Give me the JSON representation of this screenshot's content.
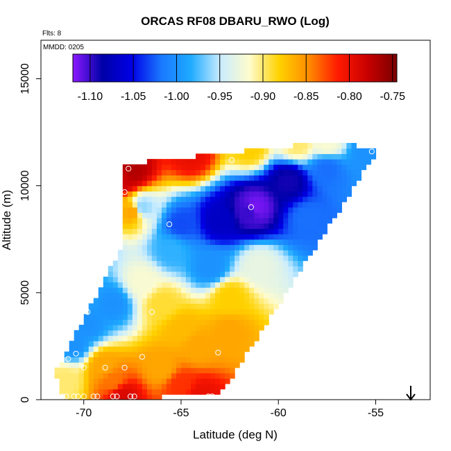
{
  "chart_data": {
    "type": "heatmap",
    "title": "ORCAS RF08 DBARU_RWO (Log)",
    "flights_label": "Flts: 8",
    "date_label": "MMDD: 0205",
    "xlabel": "Latitude (deg N)",
    "ylabel": "Altitude (m)",
    "xlim": [
      -72.2,
      -52.2
    ],
    "ylim": [
      0,
      16800
    ],
    "xticks": [
      -70,
      -65,
      -60,
      -55
    ],
    "yticks": [
      0,
      5000,
      10000,
      15000
    ],
    "xtick_labels": [
      "-70",
      "-65",
      "-60",
      "-55"
    ],
    "ytick_labels": [
      "0",
      "5000",
      "10000",
      "15000"
    ],
    "colorbar": {
      "min": -1.12,
      "max": -0.745,
      "ticks": [
        -1.1,
        -1.05,
        -1.0,
        -0.95,
        -0.9,
        -0.85,
        -0.8,
        -0.75
      ],
      "tick_labels": [
        "-1.10",
        "-1.05",
        "-1.00",
        "-0.95",
        "-0.90",
        "-0.85",
        "-0.80",
        "-0.75"
      ],
      "colors": [
        "#8b1aff",
        "#0000a8",
        "#0000e6",
        "#1a78ff",
        "#1eaaff",
        "#c8ecff",
        "#fffccc",
        "#ffd200",
        "#ff8c00",
        "#ff1a00",
        "#c80000",
        "#7a0000"
      ]
    },
    "grid_cell": {
      "dx_deg": 0.25,
      "dz_m": 250
    },
    "domain_polygon": [
      [
        -71.5,
        1200
      ],
      [
        -68.0,
        7200
      ],
      [
        -68.0,
        11000
      ],
      [
        -58.0,
        12000
      ],
      [
        -54.8,
        11800
      ],
      [
        -63.0,
        200
      ],
      [
        -71.0,
        0
      ]
    ],
    "field_anchors": [
      {
        "lat": -61.2,
        "alt": 9000,
        "value": -1.115
      },
      {
        "lat": -61.5,
        "alt": 8800,
        "value": -1.1
      },
      {
        "lat": -59.5,
        "alt": 10200,
        "value": -1.09
      },
      {
        "lat": -63.0,
        "alt": 8400,
        "value": -1.07
      },
      {
        "lat": -65.0,
        "alt": 8200,
        "value": -1.03
      },
      {
        "lat": -57.5,
        "alt": 10800,
        "value": -1.02
      },
      {
        "lat": -58.5,
        "alt": 8500,
        "value": -1.02
      },
      {
        "lat": -67.0,
        "alt": 9000,
        "value": -0.96
      },
      {
        "lat": -67.5,
        "alt": 10700,
        "value": -0.77
      },
      {
        "lat": -68.0,
        "alt": 10300,
        "value": -0.78
      },
      {
        "lat": -67.5,
        "alt": 8800,
        "value": -0.86
      },
      {
        "lat": -69.5,
        "alt": 7200,
        "value": -0.97
      },
      {
        "lat": -70.0,
        "alt": 5000,
        "value": -0.99
      },
      {
        "lat": -69.8,
        "alt": 3500,
        "value": -1.0
      },
      {
        "lat": -70.5,
        "alt": 2600,
        "value": -1.0
      },
      {
        "lat": -68.5,
        "alt": 4500,
        "value": -1.0
      },
      {
        "lat": -67.0,
        "alt": 5500,
        "value": -0.92
      },
      {
        "lat": -66.0,
        "alt": 4500,
        "value": -0.89
      },
      {
        "lat": -65.0,
        "alt": 3300,
        "value": -0.87
      },
      {
        "lat": -64.2,
        "alt": 2500,
        "value": -0.86
      },
      {
        "lat": -62.5,
        "alt": 4800,
        "value": -0.88
      },
      {
        "lat": -61.0,
        "alt": 6300,
        "value": -0.93
      },
      {
        "lat": -63.5,
        "alt": 6200,
        "value": -1.0
      },
      {
        "lat": -62.5,
        "alt": 3200,
        "value": -0.86
      },
      {
        "lat": -65.5,
        "alt": 7000,
        "value": -0.98
      },
      {
        "lat": -61.5,
        "alt": 11800,
        "value": -0.88
      },
      {
        "lat": -59.0,
        "alt": 12000,
        "value": -0.9
      },
      {
        "lat": -57.5,
        "alt": 12000,
        "value": -0.92
      },
      {
        "lat": -64.5,
        "alt": 11500,
        "value": -0.8
      },
      {
        "lat": -55.5,
        "alt": 11500,
        "value": -1.0
      },
      {
        "lat": -69.0,
        "alt": 1600,
        "value": -0.86
      },
      {
        "lat": -66.0,
        "alt": 1500,
        "value": -0.86
      },
      {
        "lat": -68.5,
        "alt": 900,
        "value": -0.84
      },
      {
        "lat": -65.0,
        "alt": 700,
        "value": -0.82
      },
      {
        "lat": -68.0,
        "alt": 200,
        "value": -0.79
      },
      {
        "lat": -64.0,
        "alt": 200,
        "value": -0.8
      },
      {
        "lat": -71.0,
        "alt": 900,
        "value": -0.9
      }
    ],
    "observations": [
      {
        "lat": -71.1,
        "alt": 150
      },
      {
        "lat": -70.9,
        "alt": 150
      },
      {
        "lat": -70.5,
        "alt": 150
      },
      {
        "lat": -70.3,
        "alt": 150
      },
      {
        "lat": -70.0,
        "alt": 150
      },
      {
        "lat": -69.5,
        "alt": 150
      },
      {
        "lat": -69.3,
        "alt": 150
      },
      {
        "lat": -68.5,
        "alt": 150
      },
      {
        "lat": -68.3,
        "alt": 150
      },
      {
        "lat": -67.6,
        "alt": 150
      },
      {
        "lat": -67.4,
        "alt": 150
      },
      {
        "lat": -63.6,
        "alt": 150
      },
      {
        "lat": -63.4,
        "alt": 150
      },
      {
        "lat": -70.0,
        "alt": 1500
      },
      {
        "lat": -68.9,
        "alt": 1500
      },
      {
        "lat": -67.9,
        "alt": 1500
      },
      {
        "lat": -70.8,
        "alt": 1900
      },
      {
        "lat": -70.4,
        "alt": 2150
      },
      {
        "lat": -67.0,
        "alt": 2000
      },
      {
        "lat": -63.1,
        "alt": 2200
      },
      {
        "lat": -70.3,
        "alt": 4100
      },
      {
        "lat": -70.1,
        "alt": 4100
      },
      {
        "lat": -69.8,
        "alt": 4100
      },
      {
        "lat": -66.5,
        "alt": 4100
      },
      {
        "lat": -69.1,
        "alt": 7100
      },
      {
        "lat": -65.6,
        "alt": 8200
      },
      {
        "lat": -68.3,
        "alt": 8600
      },
      {
        "lat": -67.9,
        "alt": 9700
      },
      {
        "lat": -67.7,
        "alt": 10800
      },
      {
        "lat": -61.4,
        "alt": 9000
      },
      {
        "lat": -62.4,
        "alt": 11200
      },
      {
        "lat": -55.2,
        "alt": 11600
      }
    ],
    "grid": false,
    "legend_position": "top"
  }
}
